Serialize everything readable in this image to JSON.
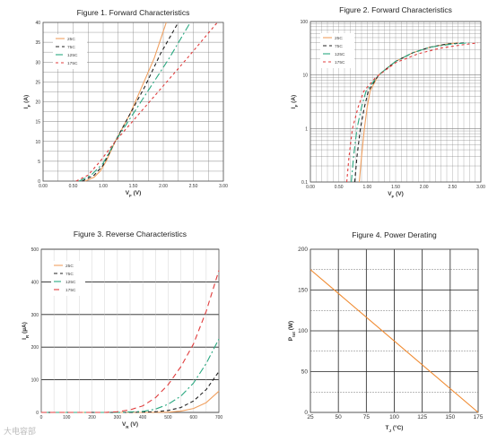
{
  "watermark": "大电容部",
  "colors": {
    "c25": "#f0a060",
    "c75": "#222222",
    "c125": "#2aa880",
    "c175": "#e03c3c",
    "grid": "#808080",
    "derating": "#f08a30"
  },
  "chart_data": [
    {
      "id": "fig1",
      "type": "line",
      "title": "Figure 1. Forward Characteristics",
      "xlabel_main": "V",
      "xlabel_sub": "F",
      "xlabel_unit": " (V)",
      "ylabel_main": "I",
      "ylabel_sub": "F",
      "ylabel_unit": " (A)",
      "xlim": [
        0,
        3
      ],
      "ylim": [
        0,
        40
      ],
      "xticks": [
        "0.00",
        "0.50",
        "1.00",
        "1.50",
        "2.00",
        "2.50",
        "3.00"
      ],
      "yticks": [
        "0",
        "5",
        "10",
        "15",
        "20",
        "25",
        "30",
        "35",
        "40"
      ],
      "legend_position": "top-left",
      "series": [
        {
          "name": "25C",
          "key": "c25",
          "dash": "",
          "points": [
            [
              0.7,
              0
            ],
            [
              0.85,
              1
            ],
            [
              0.95,
              2.5
            ],
            [
              1.05,
              5
            ],
            [
              1.2,
              10
            ],
            [
              1.45,
              17
            ],
            [
              1.65,
              24
            ],
            [
              1.85,
              31
            ],
            [
              2.05,
              40
            ]
          ]
        },
        {
          "name": "75C",
          "key": "c75",
          "dash": "4,3",
          "points": [
            [
              0.65,
              0
            ],
            [
              0.85,
              1.5
            ],
            [
              1.0,
              4
            ],
            [
              1.2,
              10
            ],
            [
              1.45,
              17
            ],
            [
              1.7,
              24
            ],
            [
              1.95,
              32
            ],
            [
              2.25,
              40
            ]
          ]
        },
        {
          "name": "125C",
          "key": "c125",
          "dash": "8,3,2,3",
          "points": [
            [
              0.6,
              0
            ],
            [
              0.8,
              1.5
            ],
            [
              1.0,
              4.5
            ],
            [
              1.2,
              10
            ],
            [
              1.5,
              17
            ],
            [
              1.8,
              24
            ],
            [
              2.1,
              31
            ],
            [
              2.45,
              40
            ]
          ]
        },
        {
          "name": "175C",
          "key": "c175",
          "dash": "3,3",
          "points": [
            [
              0.55,
              0
            ],
            [
              0.75,
              1.5
            ],
            [
              0.95,
              5
            ],
            [
              1.2,
              10
            ],
            [
              1.6,
              17
            ],
            [
              2.0,
              24
            ],
            [
              2.4,
              31
            ],
            [
              2.9,
              40
            ]
          ]
        }
      ]
    },
    {
      "id": "fig2",
      "type": "line",
      "title": "Figure 2. Forward Characteristics",
      "xlabel_main": "V",
      "xlabel_sub": "F",
      "xlabel_unit": " (V)",
      "ylabel_main": "I",
      "ylabel_sub": "F",
      "ylabel_unit": " (A)",
      "xlim": [
        0,
        3
      ],
      "ylim": [
        0.1,
        100
      ],
      "yscale": "log",
      "xticks": [
        "0.00",
        "0.50",
        "1.00",
        "1.50",
        "2.00",
        "2.50",
        "3.00"
      ],
      "yticks": [
        "0.1",
        "1",
        "10",
        "100"
      ],
      "legend_position": "top-left",
      "series": [
        {
          "name": "25C",
          "key": "c25",
          "dash": "",
          "points": [
            [
              0.86,
              0.1
            ],
            [
              0.9,
              0.3
            ],
            [
              0.95,
              1
            ],
            [
              1.0,
              2.5
            ],
            [
              1.05,
              5
            ],
            [
              1.2,
              10
            ],
            [
              1.5,
              18
            ],
            [
              1.8,
              26
            ],
            [
              2.1,
              33
            ],
            [
              2.4,
              38
            ],
            [
              2.6,
              40
            ]
          ]
        },
        {
          "name": "75C",
          "key": "c75",
          "dash": "4,3",
          "points": [
            [
              0.78,
              0.1
            ],
            [
              0.82,
              0.3
            ],
            [
              0.88,
              1
            ],
            [
              0.95,
              2.5
            ],
            [
              1.02,
              5
            ],
            [
              1.2,
              10
            ],
            [
              1.5,
              18
            ],
            [
              1.8,
              26
            ],
            [
              2.1,
              33
            ],
            [
              2.4,
              38
            ],
            [
              2.7,
              40
            ]
          ]
        },
        {
          "name": "125C",
          "key": "c125",
          "dash": "8,3,2,3",
          "points": [
            [
              0.72,
              0.1
            ],
            [
              0.76,
              0.3
            ],
            [
              0.82,
              1
            ],
            [
              0.9,
              2.5
            ],
            [
              0.98,
              5
            ],
            [
              1.2,
              10
            ],
            [
              1.5,
              18
            ],
            [
              1.8,
              26
            ],
            [
              2.1,
              33
            ],
            [
              2.5,
              38
            ],
            [
              2.8,
              40
            ]
          ]
        },
        {
          "name": "175C",
          "key": "c175",
          "dash": "3,3",
          "points": [
            [
              0.64,
              0.1
            ],
            [
              0.68,
              0.3
            ],
            [
              0.74,
              1
            ],
            [
              0.84,
              2.5
            ],
            [
              0.94,
              5
            ],
            [
              1.15,
              9
            ],
            [
              1.5,
              17
            ],
            [
              1.9,
              25
            ],
            [
              2.3,
              32
            ],
            [
              2.7,
              37
            ],
            [
              2.95,
              40
            ]
          ]
        }
      ]
    },
    {
      "id": "fig3",
      "type": "line",
      "title": "Figure 3. Reverse Characteristics",
      "xlabel_main": "V",
      "xlabel_sub": "R",
      "xlabel_unit": " (V)",
      "ylabel_main": "I",
      "ylabel_sub": "R",
      "ylabel_unit": " (µA)",
      "xlim": [
        0,
        700
      ],
      "ylim": [
        0,
        500
      ],
      "xticks": [
        "0",
        "100",
        "200",
        "300",
        "400",
        "500",
        "600",
        "700"
      ],
      "yticks": [
        "0",
        "100",
        "200",
        "300",
        "400",
        "500"
      ],
      "legend_position": "top-left",
      "series": [
        {
          "name": "25C",
          "key": "c25",
          "dash": "",
          "points": [
            [
              0,
              0
            ],
            [
              400,
              0
            ],
            [
              500,
              1
            ],
            [
              550,
              4
            ],
            [
              600,
              12
            ],
            [
              650,
              30
            ],
            [
              700,
              65
            ]
          ]
        },
        {
          "name": "75C",
          "key": "c75",
          "dash": "4,3",
          "points": [
            [
              0,
              0
            ],
            [
              350,
              0
            ],
            [
              450,
              2
            ],
            [
              500,
              6
            ],
            [
              550,
              15
            ],
            [
              600,
              35
            ],
            [
              650,
              70
            ],
            [
              700,
              125
            ]
          ]
        },
        {
          "name": "125C",
          "key": "c125",
          "dash": "8,3,2,3",
          "points": [
            [
              0,
              0
            ],
            [
              300,
              0
            ],
            [
              400,
              3
            ],
            [
              450,
              10
            ],
            [
              500,
              25
            ],
            [
              550,
              50
            ],
            [
              600,
              90
            ],
            [
              650,
              150
            ],
            [
              700,
              225
            ]
          ]
        },
        {
          "name": "175C",
          "key": "c175",
          "dash": "6,4",
          "points": [
            [
              0,
              0
            ],
            [
              250,
              0
            ],
            [
              300,
              2
            ],
            [
              350,
              8
            ],
            [
              400,
              20
            ],
            [
              450,
              45
            ],
            [
              500,
              85
            ],
            [
              550,
              140
            ],
            [
              600,
              210
            ],
            [
              650,
              310
            ],
            [
              700,
              435
            ]
          ]
        }
      ]
    },
    {
      "id": "fig4",
      "type": "line",
      "title": "Figure 4. Power Derating",
      "xlabel_main": "T",
      "xlabel_sub": "J",
      "xlabel_unit": " (°C)",
      "ylabel_main": "P",
      "ylabel_sub": "tot",
      "ylabel_unit": " (W)",
      "xlim": [
        25,
        175
      ],
      "ylim": [
        0,
        200
      ],
      "xticks": [
        "25",
        "50",
        "75",
        "100",
        "125",
        "150",
        "175"
      ],
      "yticks": [
        "0",
        "50",
        "100",
        "150",
        "200"
      ],
      "series": [
        {
          "name": "",
          "key": "derating",
          "dash": "",
          "points": [
            [
              25,
              175
            ],
            [
              175,
              0
            ]
          ]
        }
      ]
    }
  ]
}
